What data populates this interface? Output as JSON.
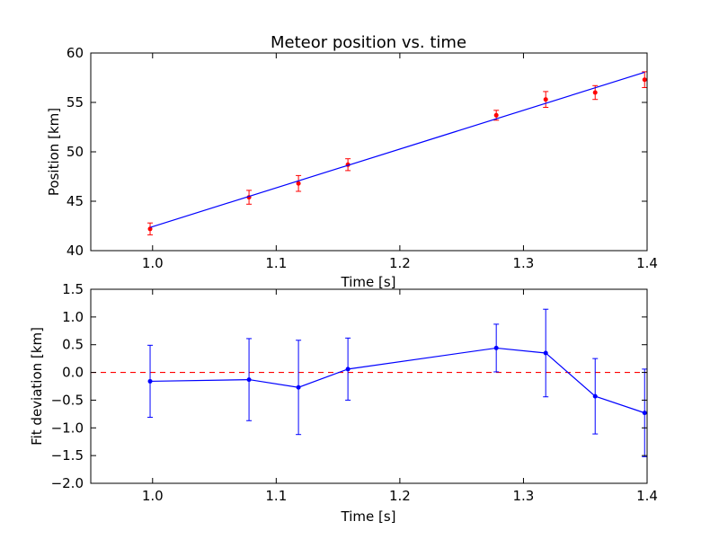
{
  "chart_data": [
    {
      "type": "scatter",
      "title": "Meteor position vs. time",
      "xlabel": "Time [s]",
      "ylabel": "Position [km]",
      "xlim": [
        0.95,
        1.4
      ],
      "ylim": [
        40,
        60
      ],
      "xticks": [
        1.0,
        1.1,
        1.2,
        1.3,
        1.4
      ],
      "yticks": [
        40,
        45,
        50,
        55,
        60
      ],
      "xtick_labels": [
        "1.0",
        "1.1",
        "1.2",
        "1.3",
        "1.4"
      ],
      "ytick_labels": [
        "40",
        "45",
        "50",
        "55",
        "60"
      ],
      "grid": false,
      "series": [
        {
          "kind": "errorbar-points",
          "color": "#ff0000",
          "x": [
            0.998,
            1.078,
            1.118,
            1.158,
            1.278,
            1.318,
            1.358,
            1.398
          ],
          "y": [
            42.2,
            45.4,
            46.8,
            48.7,
            53.7,
            55.3,
            56.0,
            57.3
          ],
          "yerr": [
            0.6,
            0.7,
            0.8,
            0.6,
            0.5,
            0.8,
            0.7,
            0.8
          ]
        },
        {
          "kind": "fit-line",
          "color": "#0000ff",
          "x": [
            0.998,
            1.398
          ],
          "y": [
            42.35,
            58.05
          ]
        }
      ]
    },
    {
      "type": "line",
      "title": "",
      "xlabel": "Time [s]",
      "ylabel": "Fit deviation [km]",
      "xlim": [
        0.95,
        1.4
      ],
      "ylim": [
        -2.0,
        1.5
      ],
      "xticks": [
        1.0,
        1.1,
        1.2,
        1.3,
        1.4
      ],
      "yticks": [
        -2.0,
        -1.5,
        -1.0,
        -0.5,
        0.0,
        0.5,
        1.0,
        1.5
      ],
      "xtick_labels": [
        "1.0",
        "1.1",
        "1.2",
        "1.3",
        "1.4"
      ],
      "ytick_labels": [
        "−2.0",
        "−1.5",
        "−1.0",
        "−0.5",
        "0.0",
        "0.5",
        "1.0",
        "1.5"
      ],
      "grid": false,
      "reference_line": {
        "y": 0.0,
        "color": "#ff0000",
        "style": "dashed"
      },
      "series": [
        {
          "kind": "errorbar-line",
          "color": "#0000ff",
          "x": [
            0.998,
            1.078,
            1.118,
            1.158,
            1.278,
            1.318,
            1.358,
            1.398
          ],
          "y": [
            -0.16,
            -0.13,
            -0.27,
            0.06,
            0.44,
            0.35,
            -0.43,
            -0.73
          ],
          "yerr": [
            0.65,
            0.74,
            0.85,
            0.56,
            0.43,
            0.79,
            0.68,
            0.79
          ]
        }
      ]
    }
  ]
}
